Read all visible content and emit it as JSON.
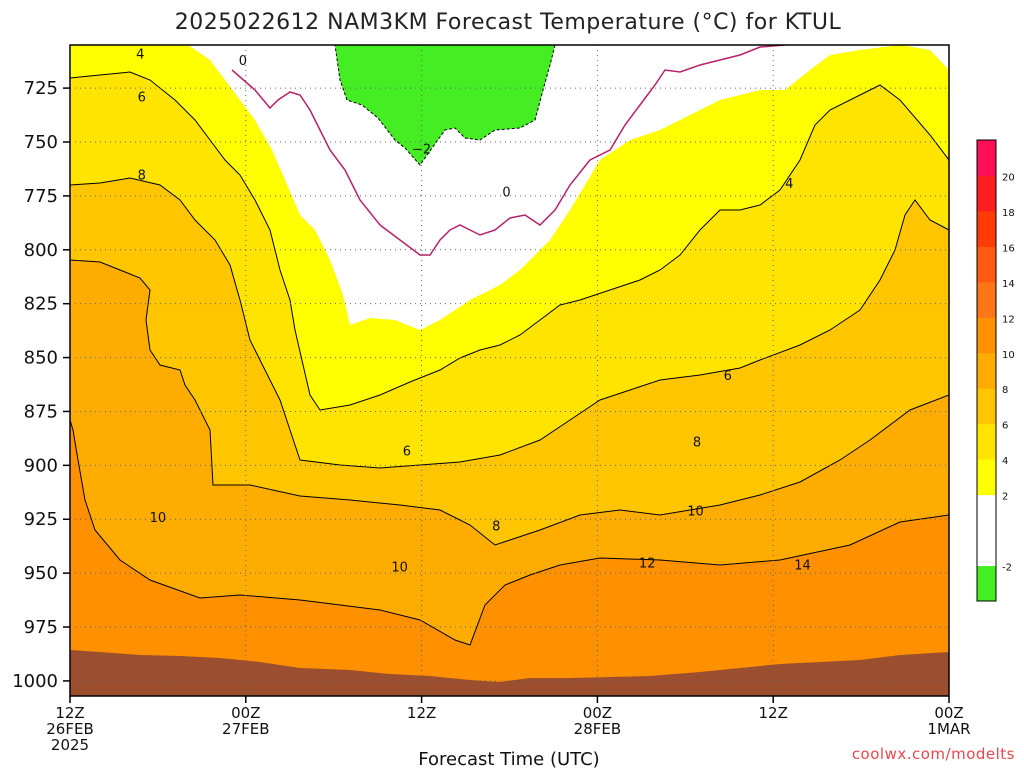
{
  "title": "2025022612 NAM3KM Forecast Temperature (°C) for KTUL",
  "credit": "coolwx.com/modelts",
  "chart_data": {
    "type": "contour",
    "title": "2025022612 NAM3KM Forecast Temperature (°C) for KTUL",
    "xlabel": "Forecast Time (UTC)",
    "ylabel": "",
    "x_ticks": [
      {
        "hour": 0,
        "lines": [
          "12Z",
          "26FEB",
          "2025"
        ]
      },
      {
        "hour": 12,
        "lines": [
          "00Z",
          "27FEB"
        ]
      },
      {
        "hour": 24,
        "lines": [
          "12Z"
        ]
      },
      {
        "hour": 36,
        "lines": [
          "00Z",
          "28FEB"
        ]
      },
      {
        "hour": 48,
        "lines": [
          "12Z"
        ]
      },
      {
        "hour": 60,
        "lines": [
          "00Z",
          "1MAR"
        ]
      }
    ],
    "xlim": [
      0,
      60
    ],
    "y_ticks": [
      725,
      750,
      775,
      800,
      825,
      850,
      875,
      900,
      925,
      950,
      975,
      1000
    ],
    "ylim": [
      705,
      1007
    ],
    "y_inverted": true,
    "grid": true,
    "contour_labels": [
      {
        "text": "4",
        "hour": 4.8,
        "p": 709
      },
      {
        "text": "6",
        "hour": 4.9,
        "p": 729
      },
      {
        "text": "8",
        "hour": 4.9,
        "p": 765
      },
      {
        "text": "0",
        "hour": 11.8,
        "p": 712
      },
      {
        "text": "−2",
        "hour": 24.0,
        "p": 753
      },
      {
        "text": "0",
        "hour": 29.8,
        "p": 773
      },
      {
        "text": "4",
        "hour": 49.1,
        "p": 769
      },
      {
        "text": "6",
        "hour": 44.9,
        "p": 858
      },
      {
        "text": "6",
        "hour": 23.0,
        "p": 893
      },
      {
        "text": "8",
        "hour": 42.8,
        "p": 889
      },
      {
        "text": "10",
        "hour": 6.0,
        "p": 924
      },
      {
        "text": "10",
        "hour": 22.5,
        "p": 947
      },
      {
        "text": "8",
        "hour": 29.1,
        "p": 928
      },
      {
        "text": "10",
        "hour": 42.7,
        "p": 921
      },
      {
        "text": "12",
        "hour": 39.4,
        "p": 945
      },
      {
        "text": "14",
        "hour": 50.0,
        "p": 946
      }
    ],
    "contour_levels": [
      -2,
      0,
      2,
      4,
      6,
      8,
      10,
      12,
      14,
      16,
      18,
      20
    ],
    "colorbar": [
      {
        "label": "-2",
        "color": "#44ee22"
      },
      {
        "label": "",
        "color": "#ffffff"
      },
      {
        "label": "2",
        "color": "#ffffff"
      },
      {
        "label": "4",
        "color": "#ffff00"
      },
      {
        "label": "6",
        "color": "#ffe400"
      },
      {
        "label": "8",
        "color": "#ffc600"
      },
      {
        "label": "10",
        "color": "#ffac00"
      },
      {
        "label": "12",
        "color": "#ff9000"
      },
      {
        "label": "14",
        "color": "#ff7618"
      },
      {
        "label": "16",
        "color": "#ff5a10"
      },
      {
        "label": "18",
        "color": "#ff3c08"
      },
      {
        "label": "20",
        "color": "#ff1e1e"
      },
      {
        "label": "",
        "color": "#ff0f55"
      }
    ],
    "colors": {
      "ground": "#9b4f2e",
      "freezing_line": "#b8206a",
      "contour_line": "#000000"
    }
  }
}
